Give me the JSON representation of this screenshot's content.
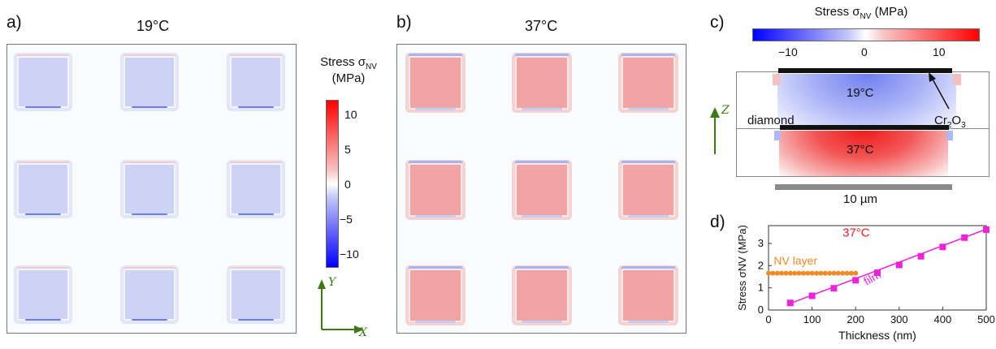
{
  "panels": {
    "a": {
      "letter": "a)",
      "temperature": "19°C"
    },
    "b": {
      "letter": "b)",
      "temperature": "37°C"
    },
    "c": {
      "letter": "c)",
      "colorbar_title": "Stress σ",
      "colorbar_sub": "NV",
      "colorbar_unit": " (MPa)",
      "ticks": [
        "−10",
        "0",
        "10"
      ],
      "label_19": "19°C",
      "label_37": "37°C",
      "diamond_label": "diamond",
      "cr_label": "Cr",
      "cr_sub1": "2",
      "cr_mid": "O",
      "cr_sub2": "3",
      "scale_label": "10 µm",
      "z_axis": "Z"
    },
    "d": {
      "letter": "d)"
    }
  },
  "colorbar_ab": {
    "title_line1": "Stress σ",
    "title_sub": "NV",
    "title_line2": "(MPa)",
    "ticks": [
      "10",
      "5",
      "0",
      "−5",
      "−10"
    ]
  },
  "axes_xy": {
    "y": "Y",
    "x": "X"
  },
  "colors": {
    "positive": "#ee2222",
    "negative": "#2222ee",
    "nv_series": "#f08a24",
    "film_series": "#ee22dd",
    "axis_arrow": "#3d7a14"
  },
  "chart_data": {
    "type": "line",
    "title": "37°C",
    "xlabel": "Thickness (nm)",
    "ylabel": "Stress σNV (MPa)",
    "xlim": [
      0,
      500
    ],
    "ylim": [
      0,
      3.8
    ],
    "xticks": [
      0,
      100,
      200,
      300,
      400,
      500
    ],
    "yticks": [
      0,
      1,
      2,
      3
    ],
    "series": [
      {
        "name": "NV layer",
        "marker": "circle",
        "color": "#f08a24",
        "x": [
          0,
          10,
          20,
          30,
          40,
          50,
          60,
          70,
          80,
          90,
          100,
          110,
          120,
          130,
          140,
          150,
          160,
          170,
          180,
          190,
          200
        ],
        "y": [
          1.66,
          1.66,
          1.66,
          1.66,
          1.66,
          1.66,
          1.66,
          1.66,
          1.66,
          1.66,
          1.66,
          1.66,
          1.66,
          1.66,
          1.66,
          1.66,
          1.66,
          1.66,
          1.66,
          1.66,
          1.66
        ]
      },
      {
        "name": "film",
        "marker": "square",
        "color": "#ee22dd",
        "x": [
          50,
          100,
          150,
          200,
          250,
          300,
          350,
          400,
          450,
          500
        ],
        "y": [
          0.32,
          0.64,
          0.98,
          1.34,
          1.68,
          2.03,
          2.42,
          2.84,
          3.26,
          3.62
        ],
        "fit_line": [
          [
            50,
            0.3
          ],
          [
            500,
            3.64
          ]
        ]
      }
    ]
  }
}
